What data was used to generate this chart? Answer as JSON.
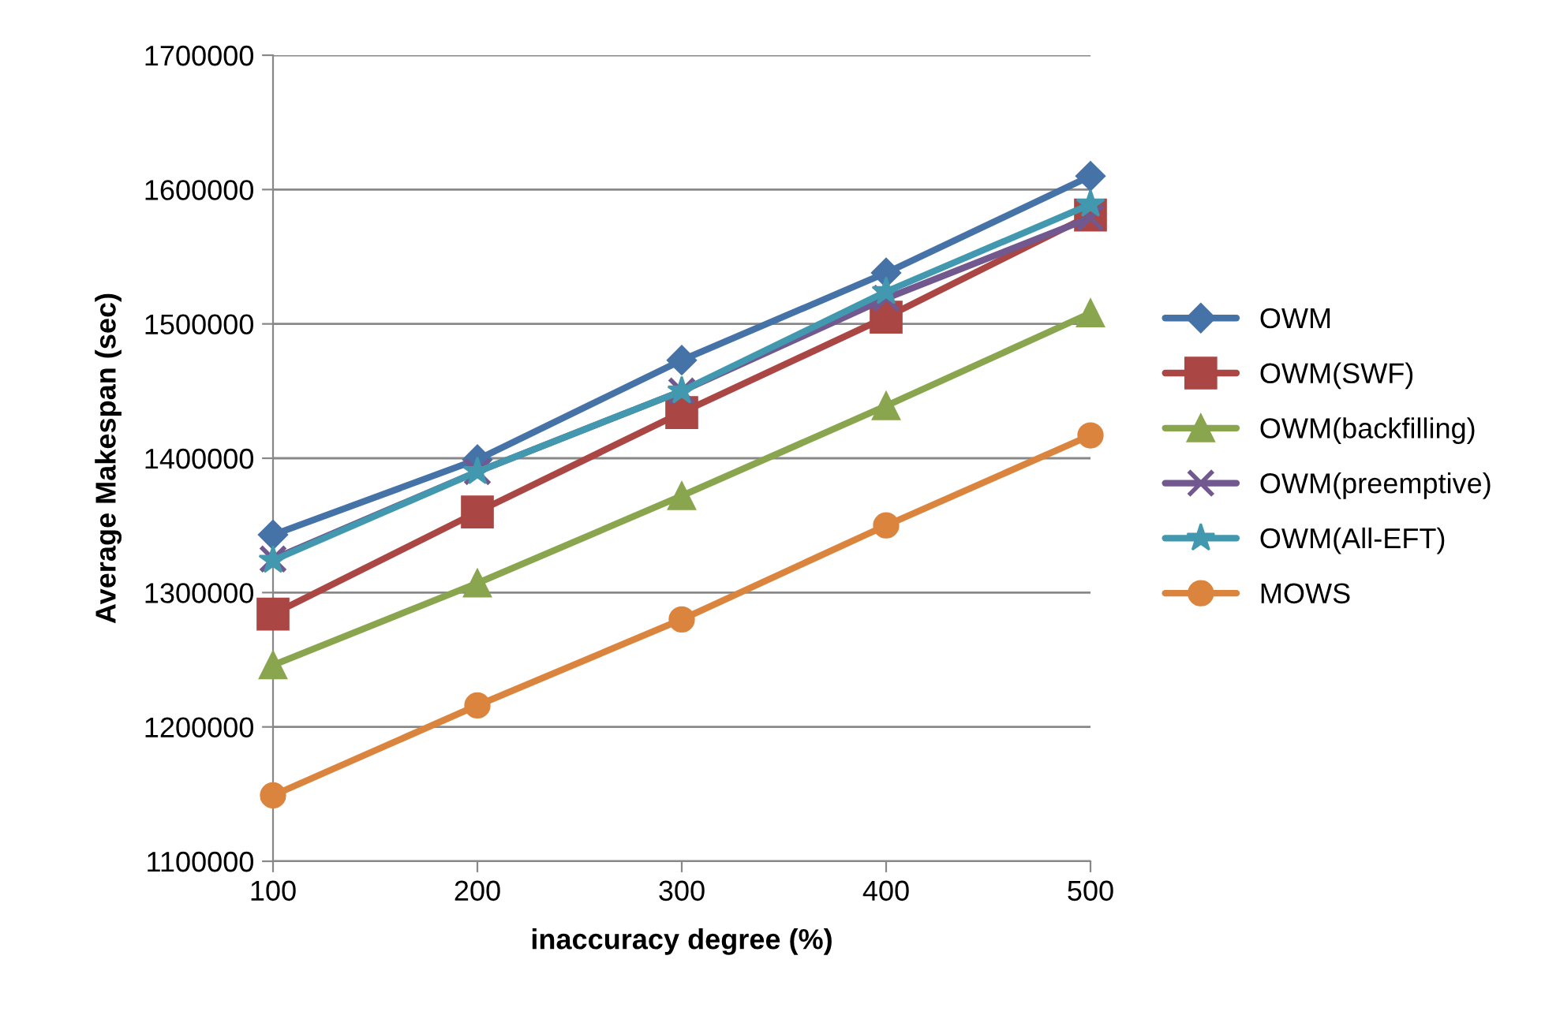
{
  "chart_data": {
    "type": "line",
    "xlabel": "inaccuracy degree (%)",
    "ylabel": "Average Makespan (sec)",
    "x": [
      100,
      200,
      300,
      400,
      500
    ],
    "xlim": [
      100,
      500
    ],
    "xticks": [
      100,
      200,
      300,
      400,
      500
    ],
    "ylim": [
      1100000,
      1700000
    ],
    "yticks": [
      1100000,
      1200000,
      1300000,
      1400000,
      1500000,
      1600000,
      1700000
    ],
    "grid": "y",
    "legend": "right",
    "series": [
      {
        "name": "OWM",
        "color": "#4572a7",
        "marker": "diamond",
        "values": [
          1343000,
          1399000,
          1473000,
          1538000,
          1610000
        ]
      },
      {
        "name": "OWM(SWF)",
        "color": "#aa4643",
        "marker": "square",
        "values": [
          1284000,
          1360000,
          1434000,
          1505000,
          1581000
        ]
      },
      {
        "name": "OWM(backfilling)",
        "color": "#89a54e",
        "marker": "triangle",
        "values": [
          1246000,
          1307000,
          1372000,
          1439000,
          1508000
        ]
      },
      {
        "name": "OWM(preemptive)",
        "color": "#71588f",
        "marker": "cross",
        "values": [
          1325000,
          1390000,
          1450000,
          1519000,
          1579000
        ]
      },
      {
        "name": "OWM(All-EFT)",
        "color": "#4198af",
        "marker": "star",
        "values": [
          1324000,
          1390000,
          1450000,
          1524000,
          1589000
        ]
      },
      {
        "name": "MOWS",
        "color": "#db843d",
        "marker": "circle",
        "values": [
          1149000,
          1216000,
          1280000,
          1350000,
          1417000
        ]
      }
    ]
  }
}
